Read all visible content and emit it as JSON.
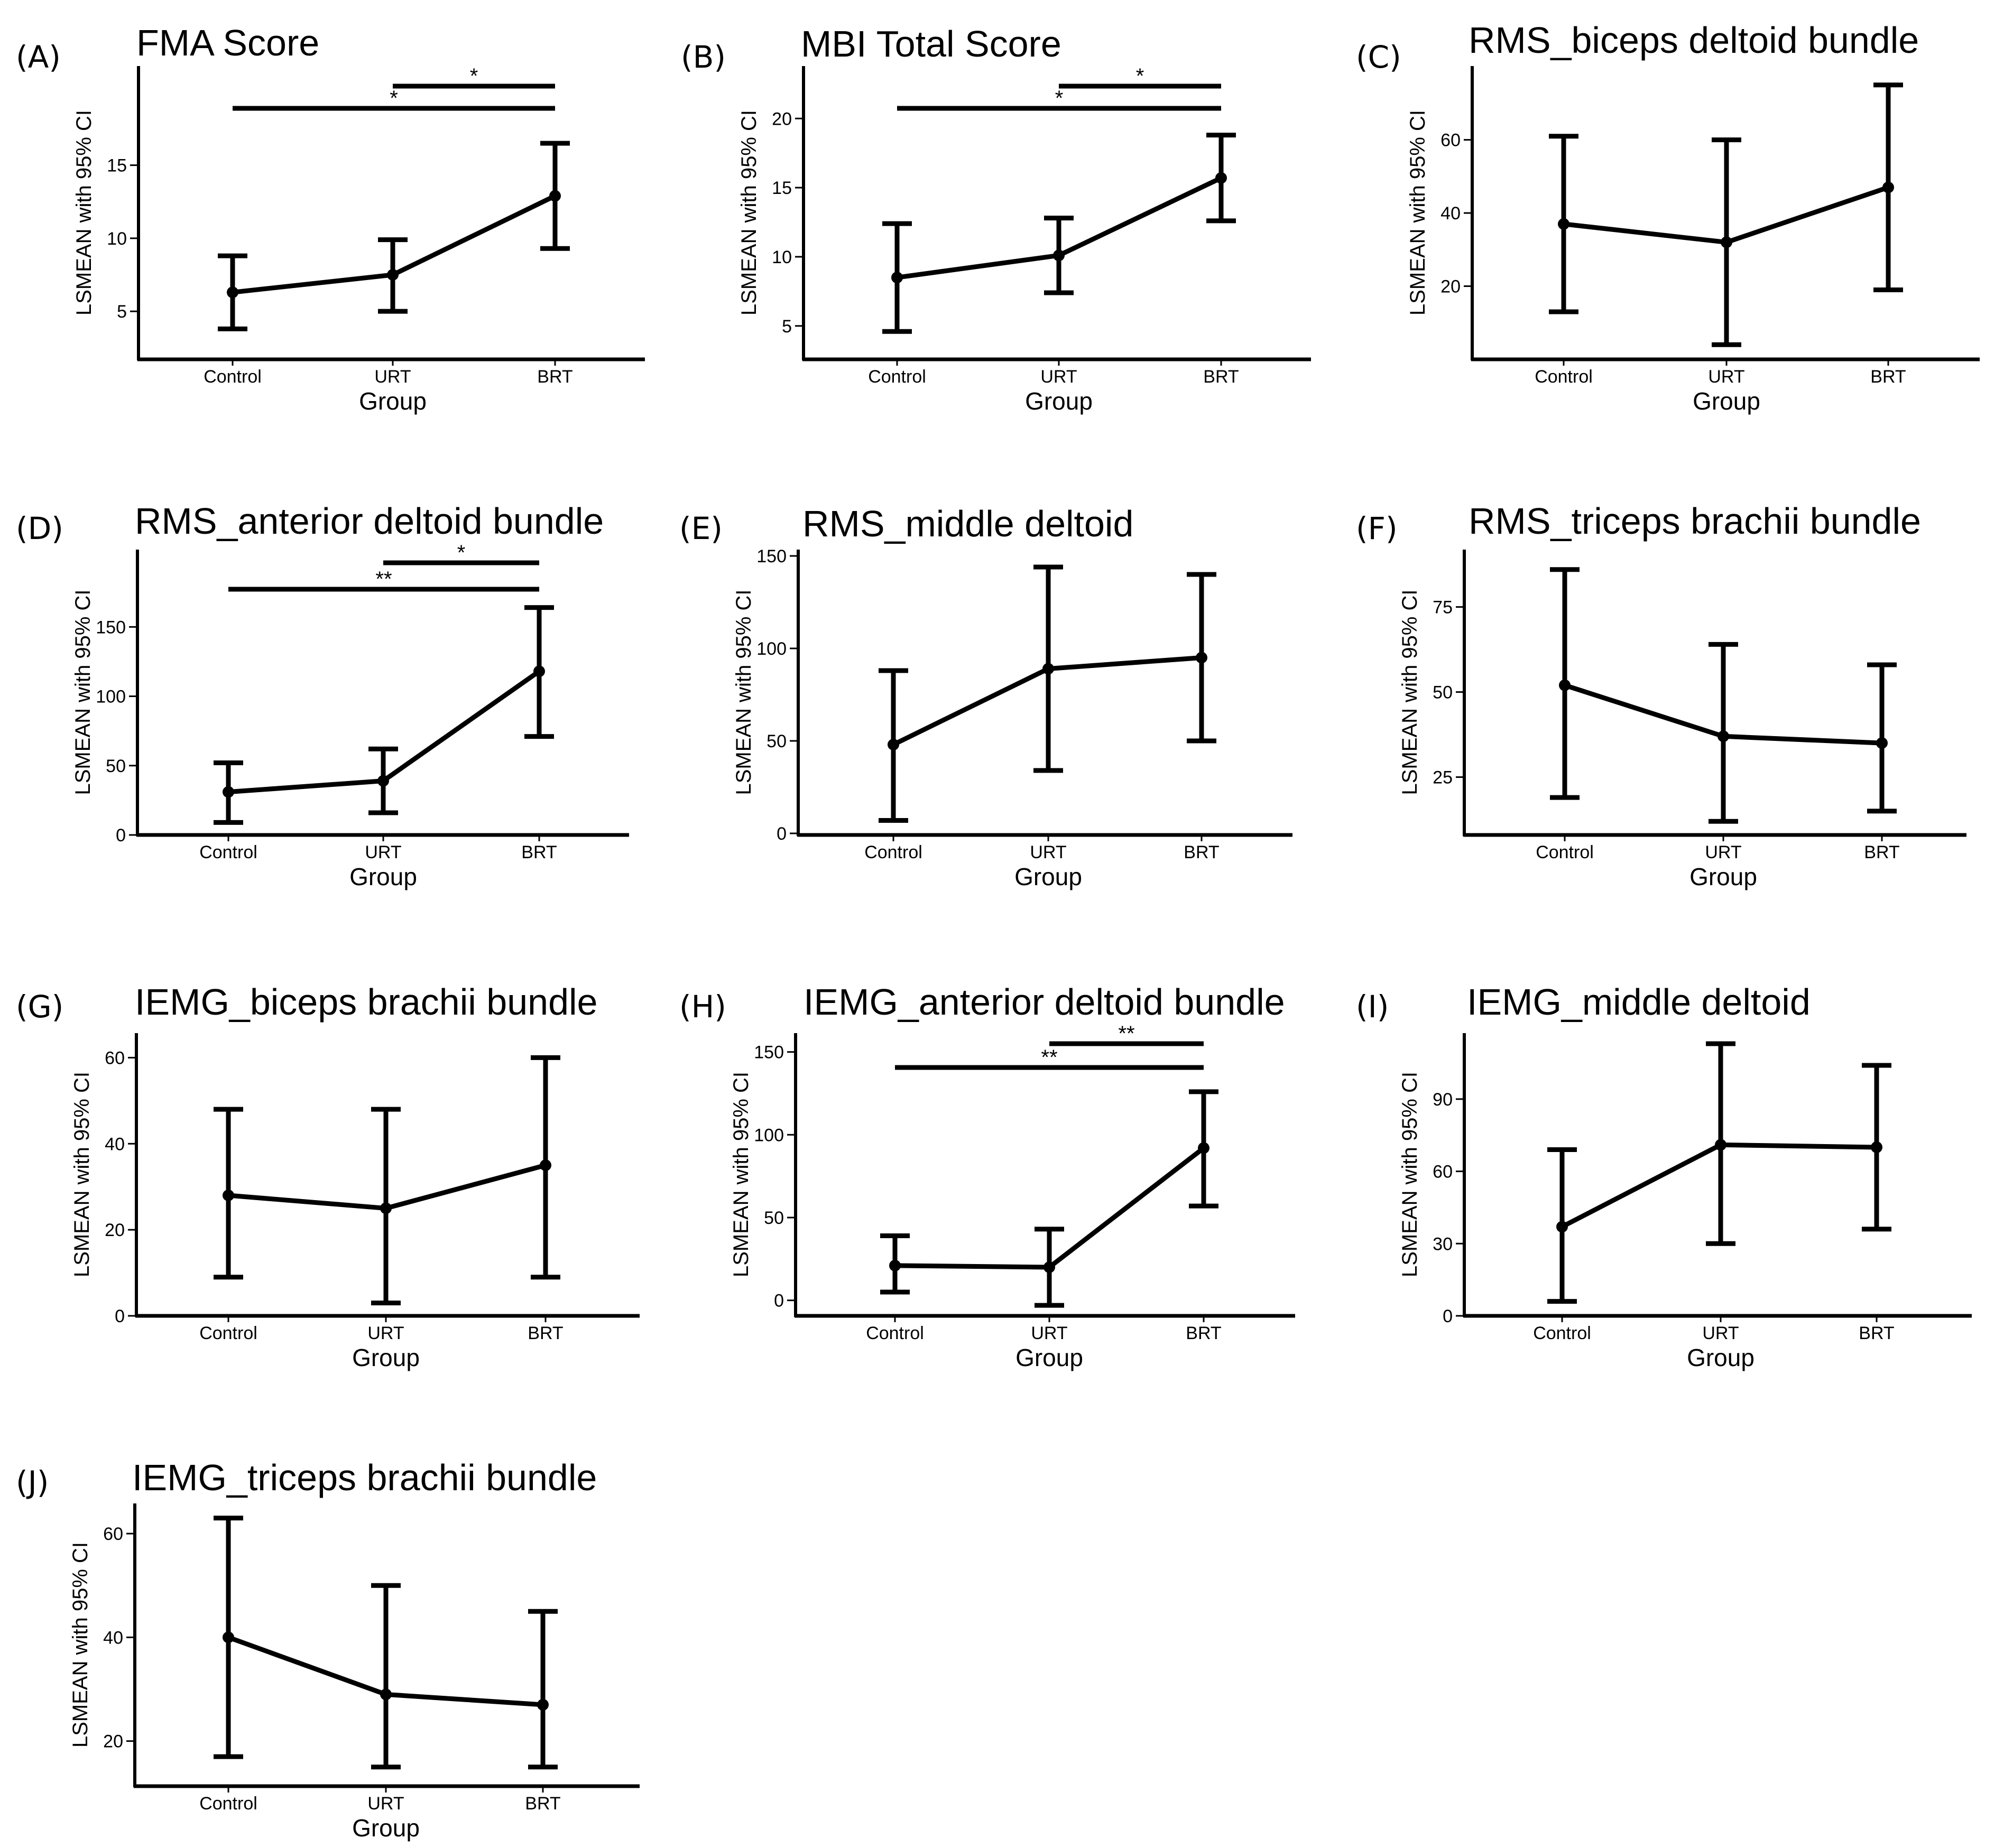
{
  "chart_data": [
    {
      "panel": "(A)",
      "type": "line",
      "title": "FMA Score",
      "xlabel": "Group",
      "ylabel": "LSMEAN with 95% CI",
      "categories": [
        "Control",
        "URT",
        "BRT"
      ],
      "ylim": [
        2.8,
        19
      ],
      "yticks": [
        5,
        10,
        15
      ],
      "values": [
        6.3,
        7.5,
        12.9
      ],
      "lower": [
        3.8,
        5.0,
        9.3
      ],
      "upper": [
        8.8,
        9.9,
        16.5
      ],
      "significance": [
        {
          "from": "URT",
          "to": "BRT",
          "label": "*"
        },
        {
          "from": "Control",
          "to": "BRT",
          "label": "*"
        }
      ]
    },
    {
      "panel": "(B)",
      "type": "line",
      "title": "MBI Total Score",
      "xlabel": "Group",
      "ylabel": "LSMEAN with 95% CI",
      "categories": [
        "Control",
        "URT",
        "BRT"
      ],
      "ylim": [
        3.5,
        21.5
      ],
      "yticks": [
        5,
        10,
        15,
        20
      ],
      "values": [
        8.5,
        10.1,
        15.7
      ],
      "lower": [
        4.6,
        7.4,
        12.6
      ],
      "upper": [
        12.4,
        12.8,
        18.8
      ],
      "significance": [
        {
          "from": "URT",
          "to": "BRT",
          "label": "*"
        },
        {
          "from": "Control",
          "to": "BRT",
          "label": "*"
        }
      ]
    },
    {
      "panel": "(C)",
      "type": "line",
      "title": "RMS_biceps deltoid bundle",
      "xlabel": "Group",
      "ylabel": "LSMEAN with 95% CI",
      "categories": [
        "Control",
        "URT",
        "BRT"
      ],
      "ylim": [
        0,
        78
      ],
      "yticks": [
        20,
        40,
        60
      ],
      "values": [
        37,
        32,
        47
      ],
      "lower": [
        13,
        4,
        19
      ],
      "upper": [
        61,
        60,
        75
      ],
      "significance": []
    },
    {
      "panel": "(D)",
      "type": "line",
      "title": "RMS_anterior deltoid bundle",
      "xlabel": "Group",
      "ylabel": "LSMEAN with 95% CI",
      "categories": [
        "Control",
        "URT",
        "BRT"
      ],
      "ylim": [
        0,
        197
      ],
      "yticks": [
        0,
        50,
        100,
        150
      ],
      "values": [
        31,
        39,
        118
      ],
      "lower": [
        9,
        16,
        71
      ],
      "upper": [
        52,
        62,
        164
      ],
      "significance": [
        {
          "from": "URT",
          "to": "BRT",
          "label": "*"
        },
        {
          "from": "Control",
          "to": "BRT",
          "label": "**"
        }
      ]
    },
    {
      "panel": "(E)",
      "type": "line",
      "title": "RMS_middle deltoid",
      "xlabel": "Group",
      "ylabel": "LSMEAN with 95% CI",
      "categories": [
        "Control",
        "URT",
        "BRT"
      ],
      "ylim": [
        0,
        150
      ],
      "yticks": [
        0,
        50,
        100,
        150
      ],
      "values": [
        48,
        89,
        95
      ],
      "lower": [
        7,
        34,
        50
      ],
      "upper": [
        88,
        144,
        140
      ],
      "significance": []
    },
    {
      "panel": "(F)",
      "type": "line",
      "title": "RMS_triceps brachii bundle",
      "xlabel": "Group",
      "ylabel": "LSMEAN with 95% CI",
      "categories": [
        "Control",
        "URT",
        "BRT"
      ],
      "ylim": [
        8,
        90
      ],
      "yticks": [
        25,
        50,
        75
      ],
      "values": [
        52,
        37,
        35
      ],
      "lower": [
        19,
        12,
        15
      ],
      "upper": [
        86,
        64,
        58
      ],
      "significance": []
    },
    {
      "panel": "(G)",
      "type": "line",
      "title": "IEMG_biceps brachii bundle",
      "xlabel": "Group",
      "ylabel": "LSMEAN with 95% CI",
      "categories": [
        "Control",
        "URT",
        "BRT"
      ],
      "ylim": [
        0,
        63
      ],
      "yticks": [
        0,
        20,
        40,
        60
      ],
      "values": [
        28,
        25,
        35
      ],
      "lower": [
        9,
        3,
        9
      ],
      "upper": [
        48,
        48,
        60
      ],
      "significance": []
    },
    {
      "panel": "(H)",
      "type": "line",
      "title": "IEMG_anterior deltoid bundle",
      "xlabel": "Group",
      "ylabel": "LSMEAN with 95% CI",
      "categories": [
        "Control",
        "URT",
        "BRT"
      ],
      "ylim": [
        -10,
        155
      ],
      "yticks": [
        0,
        50,
        100,
        150
      ],
      "values": [
        21,
        20,
        92
      ],
      "lower": [
        5,
        -3,
        57
      ],
      "upper": [
        39,
        43,
        126
      ],
      "significance": [
        {
          "from": "URT",
          "to": "BRT",
          "label": "**"
        },
        {
          "from": "Control",
          "to": "BRT",
          "label": "**"
        }
      ]
    },
    {
      "panel": "(I)",
      "type": "line",
      "title": "IEMG_middle deltoid",
      "xlabel": "Group",
      "ylabel": "LSMEAN with 95% CI",
      "categories": [
        "Control",
        "URT",
        "BRT"
      ],
      "ylim": [
        0,
        113
      ],
      "yticks": [
        0,
        30,
        60,
        90
      ],
      "values": [
        37,
        71,
        70
      ],
      "lower": [
        6,
        30,
        36
      ],
      "upper": [
        69,
        113,
        104
      ],
      "significance": []
    },
    {
      "panel": "(J)",
      "type": "line",
      "title": "IEMG_triceps brachii bundle",
      "xlabel": "Group",
      "ylabel": "LSMEAN with 95% CI",
      "categories": [
        "Control",
        "URT",
        "BRT"
      ],
      "ylim": [
        11,
        65
      ],
      "yticks": [
        20,
        40,
        60
      ],
      "values": [
        40,
        29,
        27
      ],
      "lower": [
        17,
        15,
        15
      ],
      "upper": [
        63,
        50,
        45
      ],
      "significance": []
    }
  ]
}
